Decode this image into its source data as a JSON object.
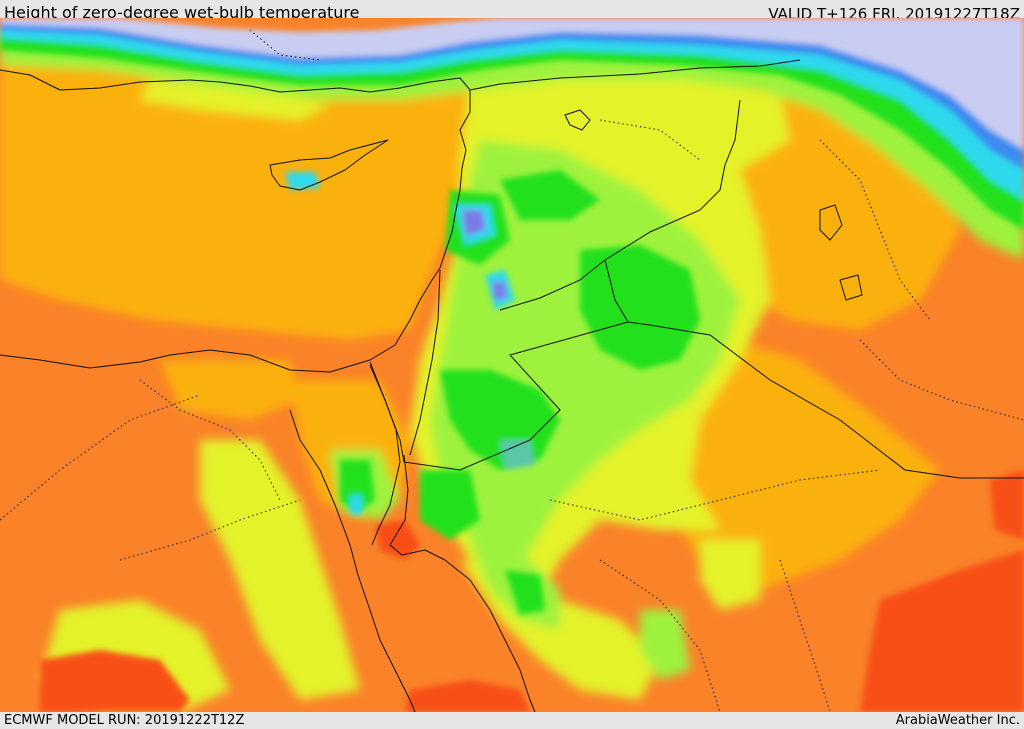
{
  "header": {
    "title": "Height of zero-degree wet-bulb temperature",
    "valid": "VALID T+126 FRI. 20191227T18Z"
  },
  "footer": {
    "model_run": "ECMWF MODEL RUN: 20191222T12Z",
    "credit": "ArabiaWeather Inc."
  },
  "map": {
    "colors": {
      "darkorange": "#f84f17",
      "orange2": "#fa8229",
      "orange": "#fbb111",
      "yellow": "#e4f22a",
      "lightgreen": "#9ef23d",
      "green": "#22e01e",
      "teal": "#5cc6a8",
      "cyan": "#2dd9ee",
      "blue": "#3a8bf0",
      "purple": "#7a7ae6",
      "lavender": "#c9cdf1",
      "border": "#111111"
    }
  }
}
